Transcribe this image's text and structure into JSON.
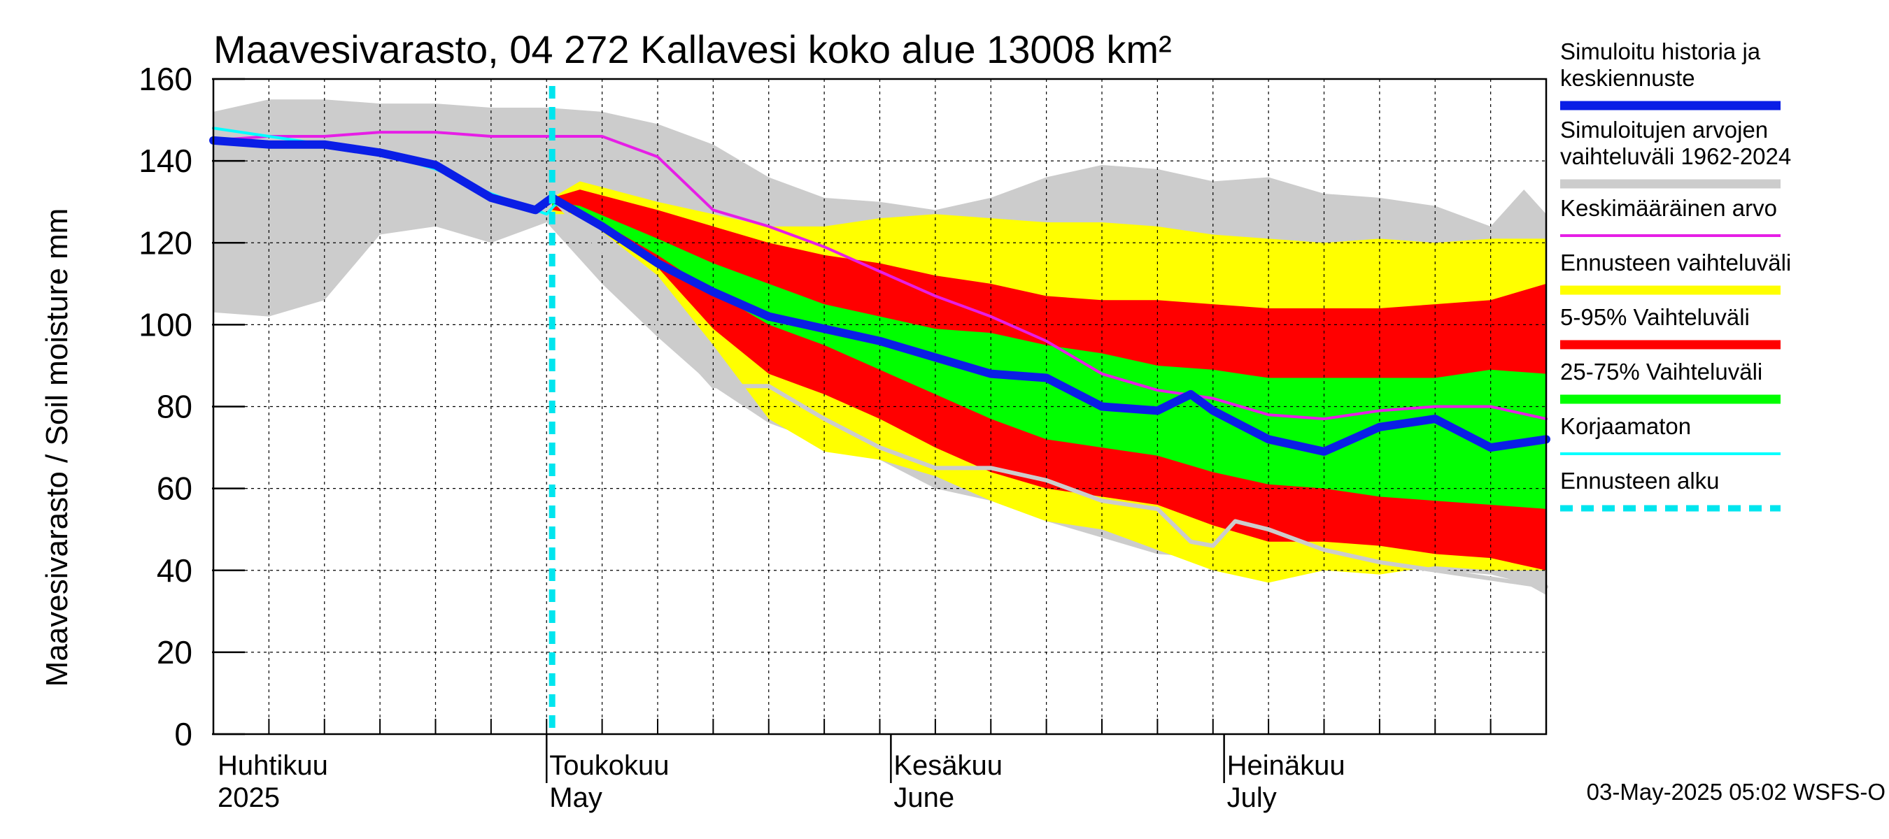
{
  "chart_data": {
    "type": "area",
    "title": "Maavesivarasto, 04 272 Kallavesi koko alue 13008 km²",
    "ylabel": "Maavesivarasto / Soil moisture   mm",
    "xlabel": "",
    "ylim": [
      0,
      160
    ],
    "yticks": [
      0,
      20,
      40,
      60,
      80,
      100,
      120,
      140,
      160
    ],
    "grid": true,
    "legend_position": "right",
    "x_range_days": [
      0,
      120
    ],
    "x_unit": "days since 1 April 2025",
    "forecast_start_day": 30.5,
    "month_labels": [
      {
        "fi": "Huhtikuu",
        "en": "2025",
        "day": 0
      },
      {
        "fi": "Toukokuu",
        "en": "May",
        "day": 30
      },
      {
        "fi": "Kesäkuu",
        "en": "June",
        "day": 61
      },
      {
        "fi": "Heinäkuu",
        "en": "July",
        "day": 91
      }
    ],
    "footer": "03-May-2025 05:02 WSFS-O",
    "legend": [
      {
        "label": "Simuloitu historia ja keskiennuste",
        "lines": [
          "Simuloitu historia ja",
          "keskiennuste"
        ],
        "color": "#0a1ee6",
        "kind": "thick"
      },
      {
        "label": "Simuloitujen arvojen vaihteluväli 1962-2024",
        "lines": [
          "Simuloitujen arvojen",
          "vaihteluväli 1962-2024"
        ],
        "color": "#cccccc",
        "kind": "band"
      },
      {
        "label": "Keskimääräinen arvo",
        "lines": [
          "Keskimääräinen arvo"
        ],
        "color": "#e61ee6",
        "kind": "line"
      },
      {
        "label": "Ennusteen vaihteluväli",
        "lines": [
          "Ennusteen vaihteluväli"
        ],
        "color": "#ffff00",
        "kind": "band"
      },
      {
        "label": "5-95% Vaihteluväli",
        "lines": [
          "5-95% Vaihteluväli"
        ],
        "color": "#ff0000",
        "kind": "band"
      },
      {
        "label": "25-75% Vaihteluväli",
        "lines": [
          "25-75% Vaihteluväli"
        ],
        "color": "#00ff00",
        "kind": "band"
      },
      {
        "label": "Korjaamaton",
        "lines": [
          "Korjaamaton"
        ],
        "color": "#00ffff",
        "kind": "line"
      },
      {
        "label": "Ennusteen alku",
        "lines": [
          "Ennusteen alku"
        ],
        "color": "#00e5ee",
        "kind": "dashed"
      }
    ],
    "series": [
      {
        "name": "Simuloitujen arvojen vaihteluväli 1962-2024",
        "type": "band",
        "color": "#cccccc",
        "x": [
          0,
          5,
          10,
          15,
          20,
          25,
          30,
          35,
          40,
          45,
          50,
          55,
          60,
          65,
          70,
          75,
          80,
          85,
          90,
          95,
          100,
          105,
          110,
          115,
          118,
          120
        ],
        "upper": [
          152,
          155,
          155,
          154,
          154,
          153,
          153,
          152,
          149,
          144,
          136,
          131,
          130,
          128,
          131,
          136,
          139,
          138,
          135,
          136,
          132,
          131,
          129,
          124,
          133,
          127
        ],
        "lower": [
          103,
          102,
          106,
          122,
          124,
          120,
          125,
          110,
          97,
          85,
          76,
          71,
          67,
          60,
          57,
          52,
          48,
          44,
          43,
          45,
          43,
          43,
          40,
          39,
          37,
          34
        ]
      },
      {
        "name": "Ennusteen vaihteluväli",
        "type": "band",
        "color": "#ffff00",
        "x": [
          30.5,
          33,
          40,
          45,
          50,
          55,
          60,
          65,
          70,
          75,
          80,
          85,
          90,
          95,
          100,
          105,
          110,
          115,
          120
        ],
        "upper": [
          131,
          135,
          130,
          127,
          124,
          124,
          126,
          127,
          126,
          125,
          125,
          124,
          122,
          121,
          120,
          121,
          120,
          121,
          121
        ],
        "lower": [
          127,
          127,
          112,
          95,
          77,
          69,
          67,
          63,
          57,
          52,
          50,
          45,
          40,
          37,
          40,
          39,
          41,
          40,
          40
        ]
      },
      {
        "name": "5-95% Vaihteluväli",
        "type": "band",
        "color": "#ff0000",
        "x": [
          30.5,
          33,
          40,
          45,
          50,
          55,
          60,
          65,
          70,
          75,
          80,
          85,
          90,
          95,
          100,
          105,
          110,
          115,
          120
        ],
        "upper": [
          131,
          133,
          128,
          124,
          120,
          117,
          115,
          112,
          110,
          107,
          106,
          106,
          105,
          104,
          104,
          104,
          105,
          106,
          110
        ],
        "lower": [
          128,
          127,
          114,
          99,
          88,
          83,
          77,
          70,
          64,
          60,
          58,
          56,
          51,
          47,
          47,
          46,
          44,
          43,
          40
        ]
      },
      {
        "name": "25-75% Vaihteluväli",
        "type": "band",
        "color": "#00ff00",
        "x": [
          30.5,
          33,
          40,
          45,
          50,
          55,
          60,
          65,
          70,
          75,
          80,
          85,
          90,
          95,
          100,
          105,
          110,
          115,
          120
        ],
        "upper": [
          130,
          129,
          121,
          115,
          110,
          105,
          102,
          99,
          98,
          95,
          93,
          90,
          89,
          87,
          87,
          87,
          87,
          89,
          88
        ],
        "lower": [
          129,
          128,
          117,
          108,
          100,
          95,
          89,
          83,
          77,
          72,
          70,
          68,
          64,
          61,
          60,
          58,
          57,
          56,
          55
        ]
      },
      {
        "name": "Keskimääräinen arvo",
        "type": "line",
        "color": "#e61ee6",
        "x": [
          0,
          5,
          10,
          15,
          20,
          25,
          30,
          35,
          40,
          45,
          50,
          55,
          60,
          65,
          70,
          75,
          80,
          85,
          90,
          95,
          100,
          105,
          110,
          115,
          120
        ],
        "values": [
          145,
          146,
          146,
          147,
          147,
          146,
          146,
          146,
          141,
          128,
          124,
          119,
          113,
          107,
          102,
          96,
          88,
          84,
          82,
          78,
          77,
          79,
          80,
          80,
          77
        ]
      },
      {
        "name": "Korjaamaton",
        "type": "line",
        "color": "#00ffff",
        "x": [
          0,
          5,
          10,
          15,
          20,
          25,
          30,
          31
        ],
        "values": [
          148,
          146,
          144,
          142,
          138,
          132,
          127,
          130
        ]
      },
      {
        "name": "Simuloitu historia ja keskiennuste (vertailu)",
        "type": "line",
        "color": "#cccccc",
        "x": [
          30.5,
          35,
          40,
          45,
          50,
          55,
          60,
          65,
          70,
          75,
          80,
          85,
          88,
          90,
          92,
          95,
          100,
          105,
          110,
          115,
          120
        ],
        "values": [
          131,
          118,
          100,
          85,
          85,
          77,
          70,
          65,
          65,
          62,
          57,
          55,
          47,
          46,
          52,
          50,
          45,
          42,
          40,
          38,
          36
        ]
      },
      {
        "name": "Simuloitu historia ja keskiennuste",
        "type": "line",
        "color": "#0a1ee6",
        "x": [
          0,
          5,
          10,
          15,
          20,
          25,
          29,
          30.5,
          35,
          40,
          45,
          50,
          55,
          60,
          65,
          70,
          75,
          80,
          85,
          88,
          90,
          95,
          100,
          105,
          110,
          115,
          120
        ],
        "values": [
          145,
          144,
          144,
          142,
          139,
          131,
          128,
          131,
          124,
          115,
          108,
          102,
          99,
          96,
          92,
          88,
          87,
          80,
          79,
          83,
          79,
          72,
          69,
          75,
          77,
          70,
          72
        ]
      }
    ]
  }
}
